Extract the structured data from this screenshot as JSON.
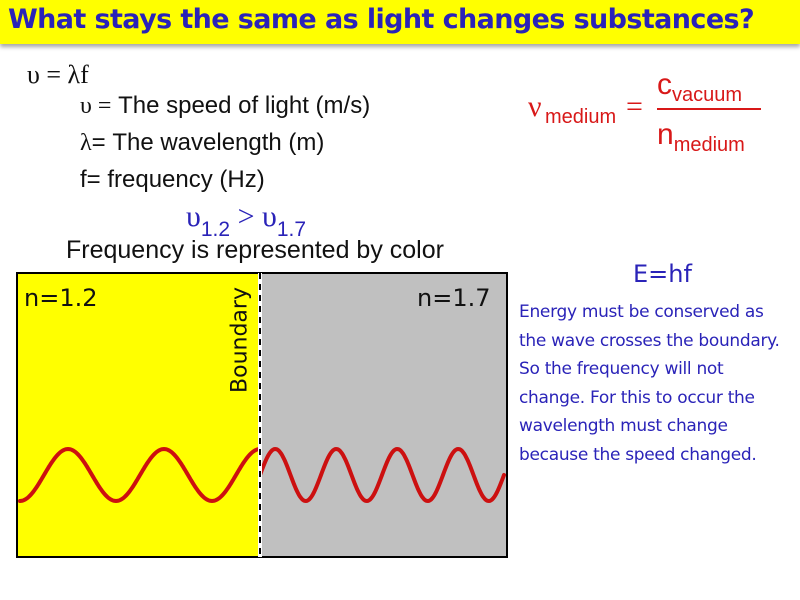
{
  "title": "What stays the same as light changes substances?",
  "equation": {
    "main": "υ = λf"
  },
  "definitions": [
    {
      "symbol": "υ =",
      "text": " The speed of light (m/s)"
    },
    {
      "symbol": "λ",
      "text": "= The wavelength (m)"
    },
    {
      "symbol": "",
      "text": "f= frequency (Hz)"
    }
  ],
  "comparison": {
    "left_symbol": "υ",
    "left_sub": "1.2",
    "operator": " > ",
    "right_symbol": "υ",
    "right_sub": "1.7"
  },
  "caption": "Frequency is represented by color",
  "formula": {
    "lhs": "ν",
    "lhs_sub": "medium",
    "equals": "=",
    "numerator": "c",
    "numerator_sub": "vacuum",
    "denominator": "n",
    "denominator_sub": "medium"
  },
  "energy_equation": "E=hf",
  "explanation": "Energy must be conserved as the wave crosses the boundary. So the frequency will not change. For this to occur the wavelength must change because the speed changed.",
  "diagram": {
    "left_label": "n=1.2",
    "right_label": "n=1.7",
    "boundary_label": "Boundary",
    "colors": {
      "left_region": "#ffff00",
      "right_region": "#c0c0c0",
      "wave": "#cc1010",
      "border": "#000000"
    }
  }
}
